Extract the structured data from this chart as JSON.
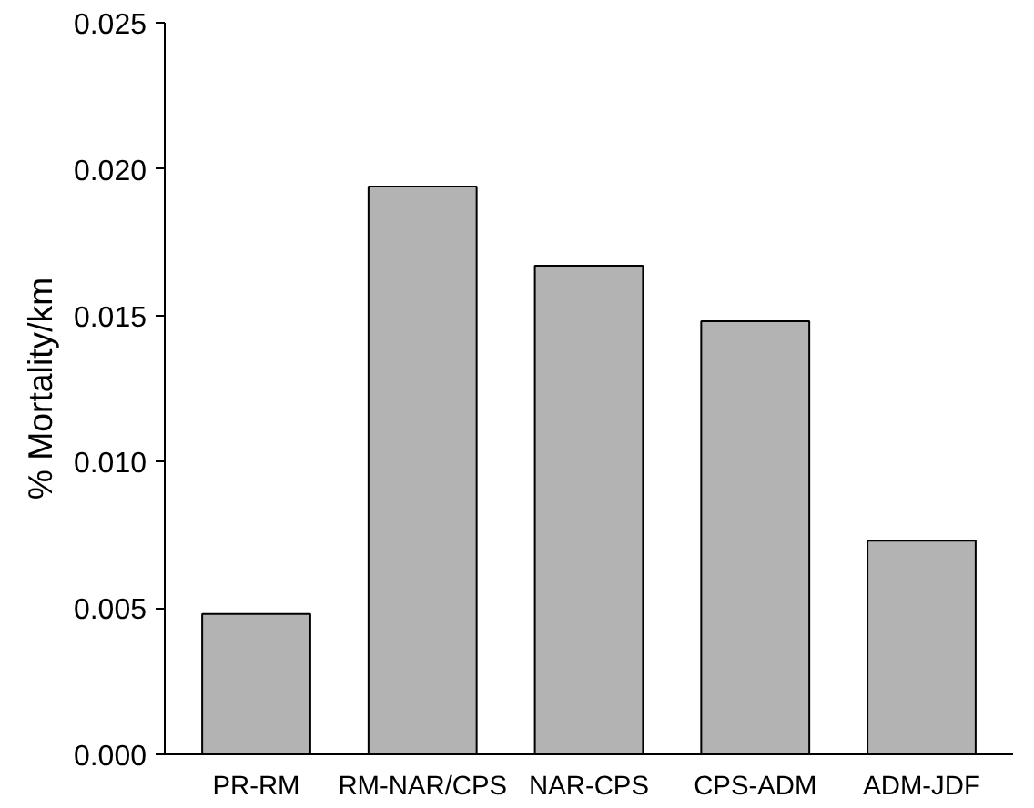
{
  "chart_data": {
    "type": "bar",
    "ylabel": "% Mortality/km",
    "categories": [
      "PR-RM",
      "RM-NAR/CPS",
      "NAR-CPS",
      "CPS-ADM",
      "ADM-JDF"
    ],
    "values": [
      0.0048,
      0.0194,
      0.0167,
      0.0148,
      0.0073
    ],
    "color": "#b3b3b3",
    "ylim": [
      0,
      0.025
    ],
    "yticks": [
      {
        "value": 0,
        "label": "0.000"
      },
      {
        "value": 0.005,
        "label": "0.005"
      },
      {
        "value": 0.01,
        "label": "0.010"
      },
      {
        "value": 0.015,
        "label": "0.015"
      },
      {
        "value": 0.02,
        "label": "0.020"
      },
      {
        "value": 0.025,
        "label": "0.025"
      }
    ],
    "grid": false
  }
}
